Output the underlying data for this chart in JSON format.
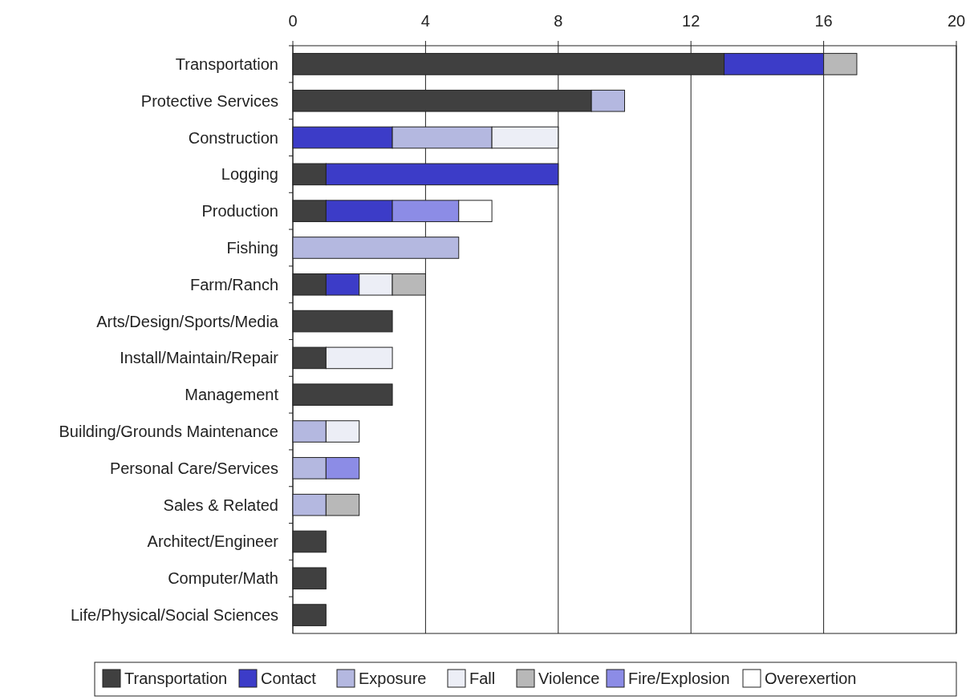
{
  "chart_data": {
    "type": "bar",
    "orientation": "horizontal",
    "stacked": true,
    "categories": [
      "Transportation",
      "Protective Services",
      "Construction",
      "Logging",
      "Production",
      "Fishing",
      "Farm/Ranch",
      "Arts/Design/Sports/Media",
      "Install/Maintain/Repair",
      "Management",
      "Building/Grounds Maintenance",
      "Personal Care/Services",
      "Sales & Related",
      "Architect/Engineer",
      "Computer/Math",
      "Life/Physical/Social Sciences"
    ],
    "series": [
      {
        "name": "Transportation",
        "color": "#404040",
        "values": [
          13,
          9,
          null,
          1,
          1,
          null,
          1,
          3,
          1,
          3,
          null,
          null,
          null,
          1,
          1,
          1
        ]
      },
      {
        "name": "Contact",
        "color": "#3c3cc8",
        "values": [
          3,
          null,
          3,
          7,
          2,
          null,
          1,
          null,
          null,
          null,
          null,
          null,
          null,
          null,
          null,
          null
        ]
      },
      {
        "name": "Exposure",
        "color": "#b4b8e0",
        "values": [
          null,
          1,
          3,
          null,
          null,
          5,
          null,
          null,
          null,
          null,
          1,
          1,
          1,
          null,
          null,
          null
        ]
      },
      {
        "name": "Fall",
        "color": "#eceef6",
        "values": [
          null,
          null,
          2,
          null,
          null,
          null,
          1,
          null,
          2,
          null,
          1,
          null,
          null,
          null,
          null,
          null
        ]
      },
      {
        "name": "Violence",
        "color": "#b8b8b8",
        "values": [
          1,
          null,
          null,
          null,
          null,
          null,
          1,
          null,
          null,
          null,
          null,
          null,
          1,
          null,
          null,
          null
        ]
      },
      {
        "name": "Fire/Explosion",
        "color": "#8c8ce6",
        "values": [
          null,
          null,
          null,
          null,
          2,
          null,
          null,
          null,
          null,
          null,
          null,
          1,
          null,
          null,
          null,
          null
        ]
      },
      {
        "name": "Overexertion",
        "color": "#ffffff",
        "values": [
          null,
          null,
          null,
          null,
          1,
          null,
          null,
          null,
          null,
          null,
          null,
          null,
          null,
          null,
          null,
          null
        ]
      }
    ],
    "xlim": [
      0,
      20
    ],
    "xticks": [
      0,
      4,
      8,
      12,
      16,
      20
    ],
    "grid": "x",
    "legend": "bottom"
  }
}
